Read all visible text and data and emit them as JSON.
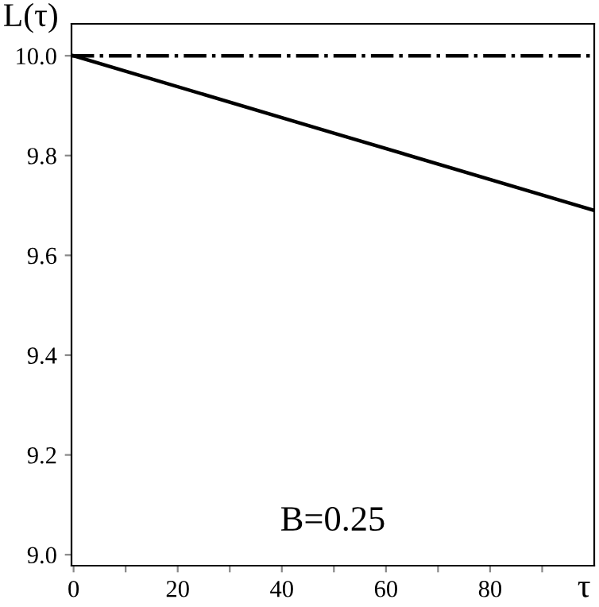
{
  "chart_data": {
    "type": "line",
    "xlabel": "τ",
    "ylabel": "L(τ)",
    "series": [
      {
        "x": [
          0,
          50,
          100
        ],
        "values": [
          10.0,
          9.845,
          9.69
        ],
        "color": "#000000",
        "line_style": "solid"
      }
    ],
    "ref_lines": [
      {
        "axis": "y",
        "value": 10.0,
        "color": "#000000",
        "line_style": "dashdot"
      }
    ],
    "xlim": [
      -0.4,
      100
    ],
    "ylim": [
      8.978,
      10.064
    ],
    "xticks": [
      0,
      {
        "value": 10,
        "label": null
      },
      20,
      {
        "value": 30,
        "label": null
      },
      40,
      {
        "value": 50,
        "label": null
      },
      60,
      {
        "value": 70,
        "label": null
      },
      80,
      {
        "value": 90,
        "label": null
      }
    ],
    "yticks": [
      {
        "value": 9.0,
        "label": "9.0"
      },
      9.2,
      9.4,
      9.6,
      9.8,
      {
        "value": 10.0,
        "label": "10.0"
      }
    ],
    "annotations": [
      "B=0.25"
    ],
    "grid": false,
    "legend": false
  }
}
